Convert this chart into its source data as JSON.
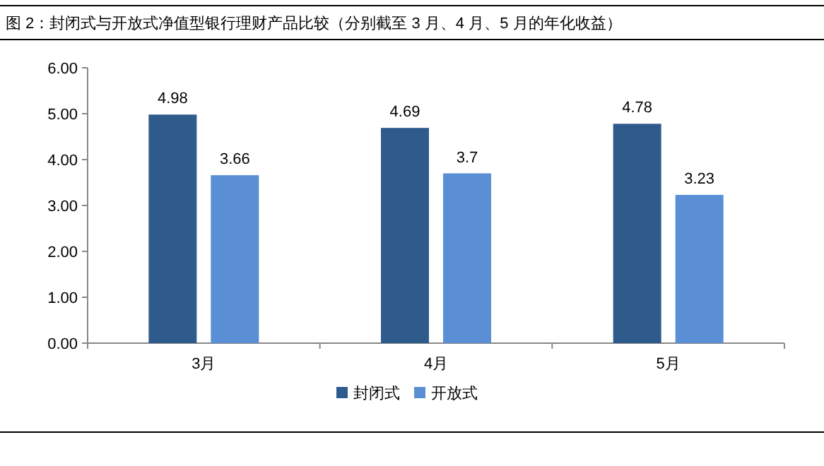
{
  "chart_data": {
    "type": "bar",
    "title": "图 2：封闭式与开放式净值型银行理财产品比较（分别截至 3 月、4 月、5 月的年化收益）",
    "categories": [
      "3月",
      "4月",
      "5月"
    ],
    "series": [
      {
        "name": "封闭式",
        "color": "#2f5b8c",
        "values": [
          4.98,
          4.69,
          4.78
        ]
      },
      {
        "name": "开放式",
        "color": "#5a8fd5",
        "values": [
          3.66,
          3.7,
          3.23
        ]
      }
    ],
    "ylim": [
      0,
      6
    ],
    "yticks": [
      {
        "value": 0,
        "label": "0.00"
      },
      {
        "value": 1,
        "label": "1.00"
      },
      {
        "value": 2,
        "label": "2.00"
      },
      {
        "value": 3,
        "label": "3.00"
      },
      {
        "value": 4,
        "label": "4.00"
      },
      {
        "value": 5,
        "label": "5.00"
      },
      {
        "value": 6,
        "label": "6.00"
      }
    ],
    "data_labels": true,
    "legend": "bottom",
    "grid": false
  }
}
